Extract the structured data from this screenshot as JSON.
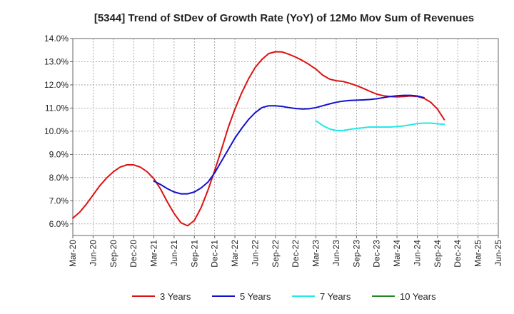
{
  "chart_data": {
    "type": "line",
    "title": "[5344]  Trend of StDev of Growth Rate (YoY) of 12Mo Mov Sum of Revenues",
    "xlabel": "",
    "ylabel": "",
    "ylim": [
      5.5,
      14.0
    ],
    "grid": true,
    "legend_position": "bottom",
    "x_ticks": [
      "Mar-20",
      "Jun-20",
      "Sep-20",
      "Dec-20",
      "Mar-21",
      "Jun-21",
      "Sep-21",
      "Dec-21",
      "Mar-22",
      "Jun-22",
      "Sep-22",
      "Dec-22",
      "Mar-23",
      "Jun-23",
      "Sep-23",
      "Dec-23",
      "Mar-24",
      "Jun-24",
      "Sep-24",
      "Dec-24",
      "Mar-25",
      "Jun-25"
    ],
    "y_ticks": [
      {
        "value": 6.0,
        "label": "6.0%"
      },
      {
        "value": 7.0,
        "label": "7.0%"
      },
      {
        "value": 8.0,
        "label": "8.0%"
      },
      {
        "value": 9.0,
        "label": "9.0%"
      },
      {
        "value": 10.0,
        "label": "10.0%"
      },
      {
        "value": 11.0,
        "label": "11.0%"
      },
      {
        "value": 12.0,
        "label": "12.0%"
      },
      {
        "value": 13.0,
        "label": "13.0%"
      },
      {
        "value": 14.0,
        "label": "14.0%"
      }
    ],
    "series": [
      {
        "name": "3 Years",
        "color": "#dd1111",
        "start_index": 0,
        "values": [
          6.25,
          6.5,
          6.85,
          7.25,
          7.65,
          7.98,
          8.25,
          8.45,
          8.55,
          8.55,
          8.45,
          8.25,
          7.95,
          7.5,
          6.95,
          6.45,
          6.05,
          5.92,
          6.15,
          6.7,
          7.45,
          8.3,
          9.2,
          10.15,
          10.95,
          11.65,
          12.25,
          12.75,
          13.1,
          13.35,
          13.43,
          13.42,
          13.32,
          13.2,
          13.05,
          12.88,
          12.68,
          12.42,
          12.25,
          12.18,
          12.15,
          12.07,
          11.97,
          11.85,
          11.72,
          11.6,
          11.53,
          11.5,
          11.48,
          11.5,
          11.52,
          11.5,
          11.42,
          11.25,
          10.95,
          10.5
        ]
      },
      {
        "name": "5 Years",
        "color": "#1111cc",
        "start_index": 12,
        "values": [
          7.85,
          7.7,
          7.52,
          7.38,
          7.3,
          7.3,
          7.38,
          7.55,
          7.8,
          8.2,
          8.7,
          9.2,
          9.7,
          10.12,
          10.5,
          10.8,
          11.02,
          11.1,
          11.1,
          11.07,
          11.02,
          10.98,
          10.96,
          10.97,
          11.02,
          11.1,
          11.18,
          11.25,
          11.3,
          11.33,
          11.34,
          11.35,
          11.37,
          11.4,
          11.45,
          11.5,
          11.53,
          11.55,
          11.55,
          11.52,
          11.45
        ]
      },
      {
        "name": "7 Years",
        "color": "#22e8e8",
        "start_index": 36,
        "values": [
          10.45,
          10.25,
          10.1,
          10.03,
          10.03,
          10.08,
          10.12,
          10.15,
          10.18,
          10.18,
          10.18,
          10.18,
          10.2,
          10.23,
          10.28,
          10.33,
          10.35,
          10.35,
          10.32,
          10.3
        ]
      },
      {
        "name": "10 Years",
        "color": "#228822",
        "start_index": 0,
        "values": []
      }
    ]
  }
}
